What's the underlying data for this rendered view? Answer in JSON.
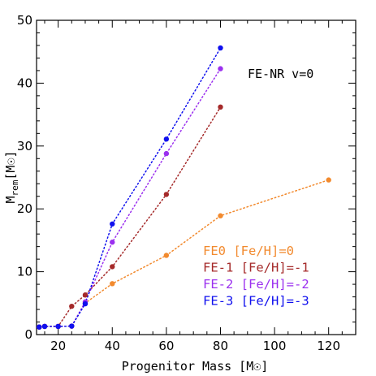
{
  "chart_data": {
    "type": "line",
    "annotation": "FE-NR v=0",
    "xlabel": "Progenitor Mass [M☉]",
    "ylabel": "M_rem[M☉]",
    "xlim": [
      12,
      130
    ],
    "ylim": [
      0,
      50
    ],
    "x_ticks": [
      20,
      40,
      60,
      80,
      100,
      120
    ],
    "y_ticks": [
      0,
      10,
      20,
      30,
      40,
      50
    ],
    "grid": false,
    "legend_position": "bottom-right",
    "line_style": "dotted",
    "series": [
      {
        "name": "FE0 [Fe/H]=0",
        "color": "#f28a2e",
        "x": [
          13,
          15,
          20,
          25,
          30,
          40,
          60,
          80,
          120
        ],
        "y": [
          1.2,
          1.3,
          1.3,
          1.35,
          5.0,
          8.1,
          12.6,
          18.9,
          24.6
        ]
      },
      {
        "name": "FE-1 [Fe/H]=-1",
        "color": "#a52a2a",
        "x": [
          13,
          15,
          20,
          25,
          30,
          40,
          60,
          80
        ],
        "y": [
          1.2,
          1.3,
          1.3,
          4.5,
          6.3,
          10.8,
          22.3,
          36.2
        ]
      },
      {
        "name": "FE-2 [Fe/H]=-2",
        "color": "#9b30ef",
        "x": [
          13,
          15,
          20,
          25,
          30,
          40,
          60,
          80
        ],
        "y": [
          1.2,
          1.3,
          1.3,
          1.35,
          5.2,
          14.7,
          28.8,
          42.3
        ]
      },
      {
        "name": "FE-3 [Fe/H]=-3",
        "color": "#1010ee",
        "x": [
          13,
          15,
          20,
          25,
          30,
          40,
          60,
          80
        ],
        "y": [
          1.2,
          1.3,
          1.3,
          1.35,
          4.9,
          17.6,
          31.1,
          45.6
        ]
      }
    ]
  }
}
